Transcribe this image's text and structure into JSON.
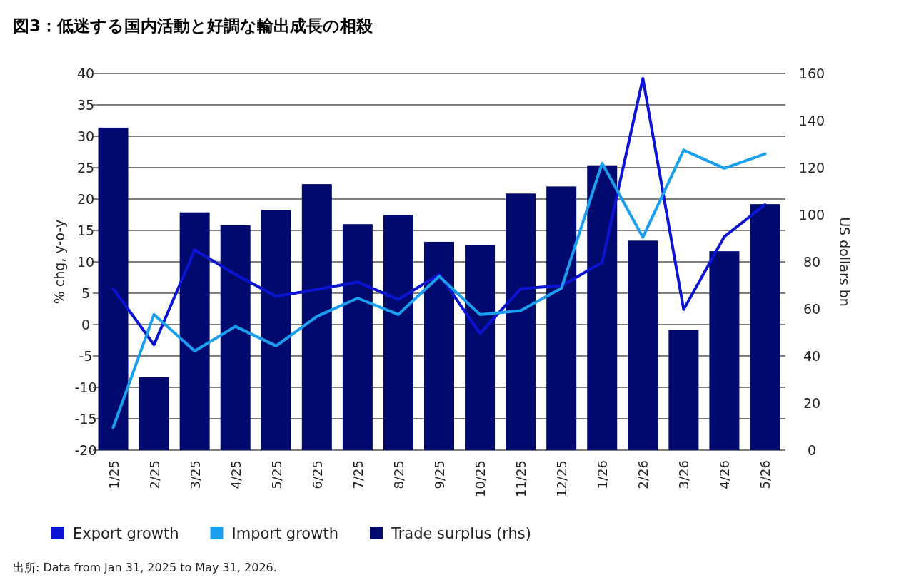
{
  "chart_data": {
    "type": "bar",
    "title": "図3：低迷する国内活動と好調な輸出成長の相殺",
    "categories": [
      "1/25",
      "2/25",
      "3/25",
      "4/25",
      "5/25",
      "6/25",
      "7/25",
      "8/25",
      "9/25",
      "10/25",
      "11/25",
      "12/25",
      "1/26",
      "2/26",
      "3/26",
      "4/26",
      "5/26"
    ],
    "series": [
      {
        "name": "Export growth",
        "type": "line",
        "color": "#0a14d2",
        "values": [
          5.7,
          -3.2,
          11.9,
          8,
          4.5,
          5.6,
          6.8,
          4,
          8,
          -1.4,
          5.7,
          6.2,
          9.9,
          39.2,
          2.4,
          14,
          19.1
        ]
      },
      {
        "name": "Import growth",
        "type": "line",
        "color": "#1a9ff0",
        "values": [
          -16.4,
          1.6,
          -4.2,
          -0.3,
          -3.4,
          1.3,
          4.2,
          1.6,
          7.7,
          1.6,
          2.2,
          5.8,
          25.7,
          13.9,
          27.8,
          24.9,
          27.2
        ]
      },
      {
        "name": "Trade surplus (rhs)",
        "type": "bar",
        "axis": "y2",
        "color": "#000a6e",
        "values": [
          137,
          31,
          101,
          95.5,
          102,
          113,
          96,
          100,
          88.5,
          87,
          109,
          112,
          121,
          89,
          51,
          84.5,
          104.5
        ]
      }
    ],
    "ylabel": "% chg, y-o-y",
    "y2label": "US dollars bn",
    "ylim": [
      -20,
      40
    ],
    "yticks": [
      -20,
      -15,
      -10,
      -5,
      0,
      5,
      10,
      15,
      20,
      25,
      30,
      35,
      40
    ],
    "y2lim": [
      0,
      160
    ],
    "y2ticks": [
      0,
      20,
      40,
      60,
      80,
      100,
      120,
      140,
      160
    ],
    "grid": "y",
    "legend": "bottom",
    "annotations": [
      "出所: Data from Jan 31, 2025 to May 31, 2026."
    ]
  }
}
